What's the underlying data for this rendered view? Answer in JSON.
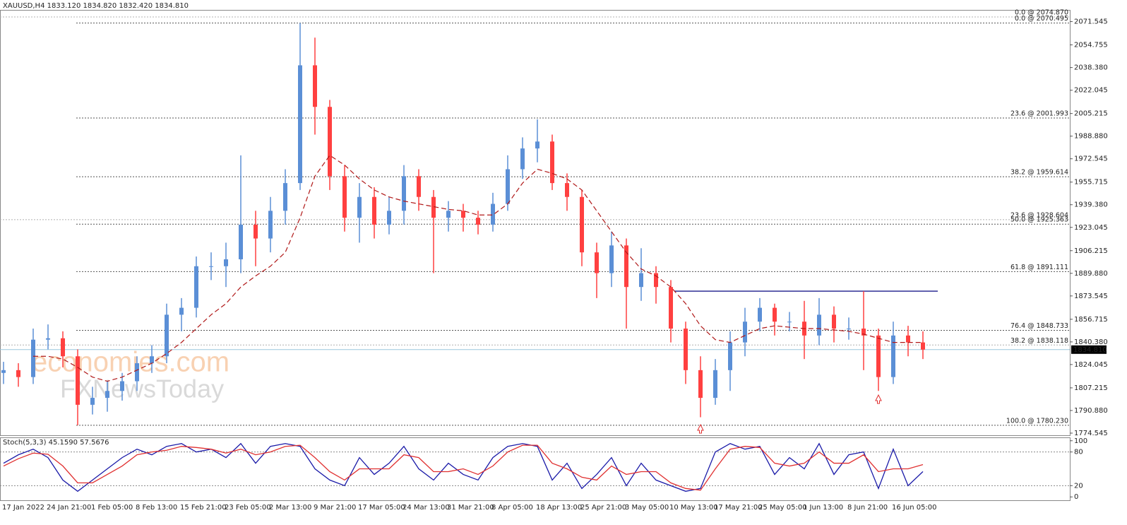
{
  "chart_data": [
    {
      "type": "candlestick",
      "title": "XAUUSD,H4  1833.120 1834.820 1832.420 1834.810",
      "watermark": [
        "economies.com",
        "FXNewsToday"
      ],
      "categories": [
        "17 Jan 2022",
        null,
        null,
        "24 Jan 21:00",
        null,
        null,
        "1 Feb 05:00",
        null,
        null,
        "8 Feb 13:00",
        null,
        null,
        "15 Feb 21:00",
        null,
        null,
        "23 Feb 05:00",
        null,
        null,
        "2 Mar 13:00",
        null,
        null,
        "9 Mar 21:00",
        null,
        null,
        "17 Mar 05:00",
        null,
        null,
        "24 Mar 13:00",
        null,
        null,
        "31 Mar 21:00",
        null,
        null,
        "8 Apr 05:00",
        null,
        null,
        "18 Apr 13:00",
        null,
        null,
        "25 Apr 21:00",
        null,
        null,
        "3 May 05:00",
        null,
        null,
        "10 May 13:00",
        null,
        null,
        "17 May 21:00",
        null,
        null,
        "25 May 05:00",
        null,
        null,
        "1 Jun 13:00",
        null,
        null,
        "8 Jun 21:00",
        null,
        null,
        "16 Jun 05:00",
        null,
        null
      ],
      "open": [
        1818,
        1820,
        1815,
        1842,
        1843,
        1830,
        1795,
        1800,
        1805,
        1812,
        1825,
        1830,
        1860,
        1865,
        1895,
        1895,
        1900,
        1925,
        1915,
        1935,
        1955,
        2040,
        2010,
        1960,
        1930,
        1945,
        1925,
        1935,
        1960,
        1945,
        1930,
        1935,
        1930,
        1925,
        1940,
        1965,
        1980,
        1985,
        1955,
        1945,
        1905,
        1890,
        1910,
        1880,
        1890,
        1880,
        1850,
        1820,
        1800,
        1820,
        1840,
        1855,
        1865,
        1855,
        1855,
        1845,
        1860,
        1850,
        1850,
        1845,
        1815,
        1845,
        1840
      ],
      "high": [
        1826,
        1825,
        1850,
        1853,
        1848,
        1835,
        1808,
        1812,
        1818,
        1830,
        1838,
        1868,
        1872,
        1902,
        1905,
        1912,
        1975,
        1935,
        1945,
        1965,
        2070.5,
        2060,
        2015,
        1968,
        1955,
        1952,
        1945,
        1968,
        1965,
        1950,
        1942,
        1940,
        1935,
        1948,
        1975,
        1988,
        2001,
        1990,
        1962,
        1950,
        1912,
        1920,
        1915,
        1908,
        1895,
        1885,
        1855,
        1830,
        1828,
        1848,
        1865,
        1872,
        1868,
        1862,
        1870,
        1872,
        1866,
        1858,
        1877,
        1850,
        1855,
        1852,
        1848
      ],
      "low": [
        1810,
        1808,
        1810,
        1835,
        1822,
        1780.2,
        1788,
        1790,
        1798,
        1805,
        1818,
        1825,
        1848,
        1858,
        1885,
        1880,
        1890,
        1895,
        1905,
        1925,
        1950,
        1990,
        1950,
        1920,
        1912,
        1915,
        1918,
        1925,
        1935,
        1890,
        1920,
        1920,
        1918,
        1920,
        1935,
        1958,
        1970,
        1950,
        1935,
        1895,
        1872,
        1880,
        1850,
        1870,
        1868,
        1840,
        1810,
        1786,
        1795,
        1805,
        1830,
        1848,
        1845,
        1848,
        1828,
        1838,
        1840,
        1842,
        1820,
        1805,
        1810,
        1830,
        1828
      ],
      "close": [
        1820,
        1815,
        1842,
        1843,
        1830,
        1795,
        1800,
        1805,
        1812,
        1825,
        1830,
        1860,
        1865,
        1895,
        1895,
        1900,
        1925,
        1915,
        1935,
        1955,
        2040,
        2010,
        1960,
        1930,
        1945,
        1925,
        1935,
        1960,
        1945,
        1930,
        1935,
        1930,
        1925,
        1940,
        1965,
        1980,
        1985,
        1955,
        1945,
        1905,
        1890,
        1910,
        1880,
        1890,
        1880,
        1850,
        1820,
        1800,
        1820,
        1840,
        1855,
        1865,
        1855,
        1855,
        1845,
        1860,
        1850,
        1850,
        1845,
        1815,
        1845,
        1840,
        1834.81
      ],
      "up_color": "#5b8fd6",
      "down_color": "#ff4040",
      "moving_average": {
        "color": "#b01818",
        "values": [
          null,
          null,
          1830,
          1830,
          1828,
          1822,
          1815,
          1812,
          1815,
          1820,
          1825,
          1832,
          1840,
          1850,
          1860,
          1868,
          1880,
          1888,
          1895,
          1905,
          1930,
          1960,
          1975,
          1968,
          1958,
          1950,
          1945,
          1942,
          1940,
          1938,
          1936,
          1935,
          1932,
          1932,
          1940,
          1955,
          1965,
          1962,
          1958,
          1950,
          1935,
          1920,
          1905,
          1893,
          1888,
          1880,
          1868,
          1852,
          1842,
          1840,
          1845,
          1850,
          1852,
          1851,
          1850,
          1850,
          1849,
          1848,
          1846,
          1843,
          1840,
          1840,
          1840
        ]
      },
      "fib_levels": [
        {
          "value": 2074.87,
          "label": "0.0 @ 2074.870",
          "color": "#b0b0b0"
        },
        {
          "value": 2070.495,
          "label": "0.0 @ 2070.495",
          "color": "#555555"
        },
        {
          "value": 2001.993,
          "label": "23.6 @ 2001.993",
          "color": "#555555"
        },
        {
          "value": 1959.614,
          "label": "38.2 @ 1959.614",
          "color": "#555555"
        },
        {
          "value": 1928.604,
          "label": "23.6 @ 1928.604",
          "color": "#b0b0b0"
        },
        {
          "value": 1925.363,
          "label": "50.0 @ 1925.363",
          "color": "#555555"
        },
        {
          "value": 1891.111,
          "label": "61.8 @ 1891.111",
          "color": "#555555"
        },
        {
          "value": 1848.733,
          "label": "76.4 @ 1848.733",
          "color": "#555555"
        },
        {
          "value": 1838.118,
          "label": "38.2 @ 1838.118",
          "color": "#b0b0b0"
        },
        {
          "value": 1780.23,
          "label": "100.0 @ 1780.230",
          "color": "#555555"
        }
      ],
      "resistance": {
        "value": 1877,
        "color": "#1c1c8c"
      },
      "last_price": {
        "value": 1834.81,
        "label": "1834.810"
      },
      "ylim": [
        1773,
        2080
      ],
      "yticks": [
        {
          "value": 2071.545,
          "label": "2071.545"
        },
        {
          "value": 2054.755,
          "label": "2054.755"
        },
        {
          "value": 2038.38,
          "label": "2038.380"
        },
        {
          "value": 2022.045,
          "label": "2022.045"
        },
        {
          "value": 2005.215,
          "label": "2005.215"
        },
        {
          "value": 1988.88,
          "label": "1988.880"
        },
        {
          "value": 1972.545,
          "label": "1972.545"
        },
        {
          "value": 1955.715,
          "label": "1955.715"
        },
        {
          "value": 1939.38,
          "label": "1939.380"
        },
        {
          "value": 1923.045,
          "label": "1923.045"
        },
        {
          "value": 1906.215,
          "label": "1906.215"
        },
        {
          "value": 1889.88,
          "label": "1889.880"
        },
        {
          "value": 1873.545,
          "label": "1873.545"
        },
        {
          "value": 1856.715,
          "label": "1856.715"
        },
        {
          "value": 1840.38,
          "label": "1840.380"
        },
        {
          "value": 1824.045,
          "label": "1824.045"
        },
        {
          "value": 1807.215,
          "label": "1807.215"
        },
        {
          "value": 1790.88,
          "label": "1790.880"
        },
        {
          "value": 1774.545,
          "label": "1774.545"
        }
      ]
    },
    {
      "type": "line",
      "title": "Stoch(5,3,3) 45.1590 57.5676",
      "series": [
        {
          "name": "Main",
          "color": "#1a1aa8",
          "values": [
            60,
            75,
            85,
            70,
            30,
            10,
            30,
            50,
            70,
            85,
            75,
            90,
            95,
            80,
            85,
            70,
            95,
            60,
            90,
            95,
            90,
            50,
            30,
            20,
            70,
            40,
            60,
            90,
            50,
            30,
            60,
            40,
            30,
            70,
            90,
            95,
            90,
            30,
            60,
            15,
            40,
            70,
            20,
            60,
            30,
            20,
            10,
            15,
            80,
            95,
            85,
            90,
            40,
            70,
            50,
            95,
            40,
            75,
            80,
            15,
            85,
            20,
            45.159
          ]
        },
        {
          "name": "Signal",
          "color": "#e03030",
          "values": [
            55,
            68,
            78,
            76,
            55,
            25,
            25,
            40,
            55,
            75,
            80,
            83,
            90,
            88,
            85,
            78,
            85,
            75,
            80,
            90,
            92,
            70,
            45,
            30,
            50,
            50,
            50,
            75,
            70,
            45,
            45,
            50,
            40,
            55,
            80,
            92,
            92,
            60,
            50,
            35,
            30,
            55,
            40,
            45,
            45,
            25,
            15,
            12,
            50,
            85,
            90,
            88,
            60,
            55,
            60,
            80,
            60,
            60,
            75,
            45,
            50,
            50,
            57.5676
          ]
        }
      ],
      "levels": [
        20,
        80
      ],
      "ylim": [
        -6,
        106
      ],
      "yticks": [
        0,
        20,
        80,
        100
      ]
    }
  ]
}
